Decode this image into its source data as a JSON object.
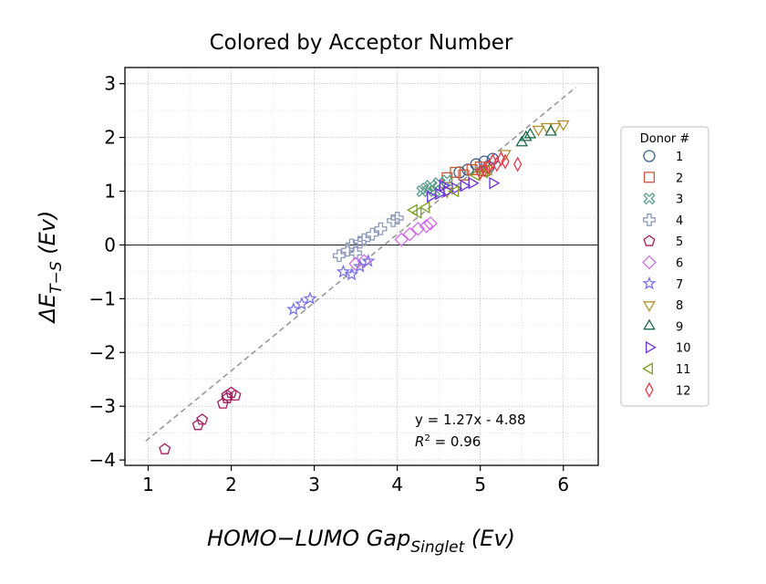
{
  "chart_data": {
    "type": "scatter",
    "title": "Colored by Acceptor Number",
    "xlabel": "HOMO−LUMO Gap",
    "xlabel_sub": "Singlet",
    "xlabel_unit": "(Ev)",
    "ylabel_main": "ΔE",
    "ylabel_sub": "T−S",
    "ylabel_unit": "(Ev)",
    "xlim": [
      0.72,
      6.42
    ],
    "ylim": [
      -4.1,
      3.3
    ],
    "xticks": [
      1,
      2,
      3,
      4,
      5,
      6
    ],
    "xtick_labels": [
      "1",
      "2",
      "3",
      "4",
      "5",
      "6"
    ],
    "yticks": [
      -4,
      -3,
      -2,
      -1,
      0,
      1,
      2,
      3
    ],
    "ytick_labels": [
      "−4",
      "−3",
      "−2",
      "−1",
      "0",
      "1",
      "2",
      "3"
    ],
    "grid": true,
    "zero_line": true,
    "legend_position": "right-outside",
    "legend_title": "Donor #",
    "fit": {
      "slope": 1.27,
      "intercept": -4.88,
      "x_range": [
        0.97,
        6.15
      ],
      "equation_text": "y = 1.27x - 4.88",
      "r2_prefix": "R",
      "r2_sup": "2",
      "r2_value": " = 0.96"
    },
    "series": [
      {
        "name": "1",
        "marker": "circle",
        "color": "#3b5f88",
        "points": [
          [
            4.75,
            1.35
          ],
          [
            4.95,
            1.5
          ],
          [
            5.05,
            1.55
          ],
          [
            5.15,
            1.6
          ],
          [
            4.85,
            1.4
          ],
          [
            5.1,
            1.45
          ]
        ]
      },
      {
        "name": "2",
        "marker": "square",
        "color": "#cc5a3a",
        "points": [
          [
            4.6,
            1.25
          ],
          [
            4.7,
            1.35
          ],
          [
            4.8,
            1.3
          ],
          [
            4.9,
            1.4
          ],
          [
            5.0,
            1.45
          ],
          [
            5.05,
            1.38
          ]
        ]
      },
      {
        "name": "3",
        "marker": "x",
        "color": "#5a9e8a",
        "points": [
          [
            4.3,
            1.0
          ],
          [
            4.4,
            1.1
          ],
          [
            4.35,
            1.05
          ],
          [
            4.5,
            1.15
          ],
          [
            4.6,
            1.2
          ],
          [
            4.45,
            1.0
          ]
        ]
      },
      {
        "name": "4",
        "marker": "plus",
        "color": "#8f9ab8",
        "points": [
          [
            3.3,
            -0.2
          ],
          [
            3.4,
            -0.1
          ],
          [
            3.45,
            0.0
          ],
          [
            3.55,
            0.05
          ],
          [
            3.6,
            0.1
          ],
          [
            3.7,
            0.2
          ],
          [
            3.8,
            0.3
          ],
          [
            3.95,
            0.45
          ],
          [
            4.0,
            0.5
          ],
          [
            3.5,
            -0.15
          ]
        ]
      },
      {
        "name": "5",
        "marker": "pentagon",
        "color": "#a01c5c",
        "points": [
          [
            1.2,
            -3.8
          ],
          [
            1.6,
            -3.35
          ],
          [
            1.65,
            -3.25
          ],
          [
            1.9,
            -2.95
          ],
          [
            1.95,
            -2.8
          ],
          [
            2.0,
            -2.75
          ],
          [
            2.05,
            -2.8
          ],
          [
            1.95,
            -2.85
          ]
        ]
      },
      {
        "name": "6",
        "marker": "diamond",
        "color": "#d26ee8",
        "points": [
          [
            3.5,
            -0.35
          ],
          [
            3.6,
            -0.3
          ],
          [
            4.05,
            0.1
          ],
          [
            4.15,
            0.2
          ],
          [
            4.25,
            0.3
          ],
          [
            4.35,
            0.35
          ],
          [
            4.4,
            0.4
          ]
        ]
      },
      {
        "name": "7",
        "marker": "star",
        "color": "#7a72e8",
        "points": [
          [
            2.75,
            -1.2
          ],
          [
            2.85,
            -1.1
          ],
          [
            2.95,
            -1.0
          ],
          [
            3.35,
            -0.5
          ],
          [
            3.45,
            -0.55
          ],
          [
            3.55,
            -0.4
          ],
          [
            3.65,
            -0.3
          ]
        ]
      },
      {
        "name": "8",
        "marker": "triangle-down",
        "color": "#b0902e",
        "points": [
          [
            5.7,
            2.15
          ],
          [
            5.8,
            2.2
          ],
          [
            5.9,
            2.2
          ],
          [
            6.0,
            2.25
          ],
          [
            5.3,
            1.7
          ],
          [
            4.6,
            1.0
          ]
        ]
      },
      {
        "name": "9",
        "marker": "triangle-up",
        "color": "#1f6b4f",
        "points": [
          [
            5.5,
            1.9
          ],
          [
            5.55,
            2.0
          ],
          [
            5.85,
            2.1
          ],
          [
            5.6,
            2.05
          ]
        ]
      },
      {
        "name": "10",
        "marker": "triangle-right",
        "color": "#6a2ee0",
        "points": [
          [
            4.4,
            0.9
          ],
          [
            4.5,
            0.95
          ],
          [
            4.6,
            1.0
          ],
          [
            4.7,
            1.05
          ],
          [
            4.8,
            1.1
          ],
          [
            4.9,
            1.15
          ],
          [
            5.15,
            1.15
          ],
          [
            4.55,
            1.1
          ]
        ]
      },
      {
        "name": "11",
        "marker": "triangle-left",
        "color": "#7aa022",
        "points": [
          [
            4.2,
            0.65
          ],
          [
            4.25,
            0.6
          ],
          [
            4.35,
            0.7
          ],
          [
            4.7,
            1.0
          ],
          [
            4.95,
            1.3
          ],
          [
            5.05,
            1.35
          ],
          [
            5.1,
            1.4
          ]
        ]
      },
      {
        "name": "12",
        "marker": "thin-diamond",
        "color": "#e43a4a",
        "points": [
          [
            5.0,
            1.35
          ],
          [
            5.1,
            1.45
          ],
          [
            5.15,
            1.55
          ],
          [
            5.2,
            1.5
          ],
          [
            5.25,
            1.6
          ],
          [
            5.3,
            1.55
          ],
          [
            5.45,
            1.5
          ],
          [
            5.05,
            1.4
          ]
        ]
      }
    ]
  }
}
